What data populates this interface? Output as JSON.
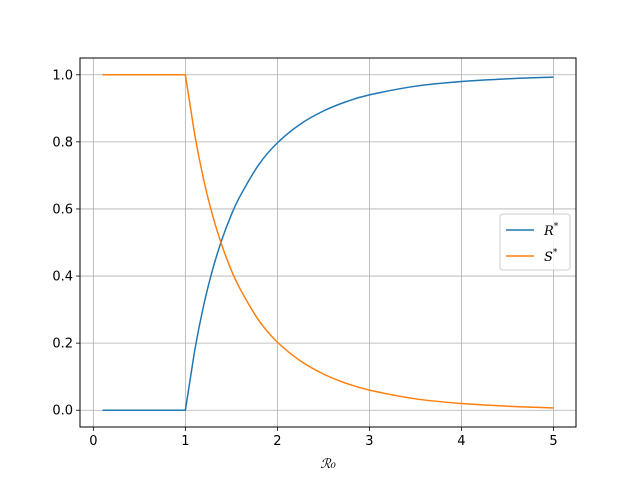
{
  "chart_data": {
    "type": "line",
    "title": "",
    "xlabel": "ℛ₀",
    "ylabel": "",
    "xlim": [
      -0.145,
      5.245
    ],
    "ylim": [
      -0.05,
      1.05
    ],
    "xticks": [
      0,
      1,
      2,
      3,
      4,
      5
    ],
    "xtick_labels": [
      "0",
      "1",
      "2",
      "3",
      "4",
      "5"
    ],
    "yticks": [
      0.0,
      0.2,
      0.4,
      0.6,
      0.8,
      1.0
    ],
    "ytick_labels": [
      "0.0",
      "0.2",
      "0.4",
      "0.6",
      "0.8",
      "1.0"
    ],
    "grid": true,
    "legend_position": "center-right",
    "x": [
      0.1,
      0.5,
      1.0,
      1.1,
      1.2,
      1.3,
      1.4,
      1.5,
      1.6,
      1.8,
      2.0,
      2.25,
      2.5,
      2.75,
      3.0,
      3.5,
      4.0,
      4.5,
      5.0
    ],
    "series": [
      {
        "name": "R*",
        "color": "#1f77b4",
        "values": [
          0.0,
          0.0,
          0.0,
          0.176,
          0.314,
          0.423,
          0.511,
          0.583,
          0.641,
          0.733,
          0.797,
          0.853,
          0.892,
          0.92,
          0.94,
          0.966,
          0.98,
          0.988,
          0.993
        ]
      },
      {
        "name": "S*",
        "color": "#ff7f0e",
        "values": [
          1.0,
          1.0,
          1.0,
          0.824,
          0.686,
          0.577,
          0.489,
          0.417,
          0.359,
          0.267,
          0.203,
          0.147,
          0.108,
          0.08,
          0.06,
          0.034,
          0.02,
          0.012,
          0.007
        ]
      }
    ]
  },
  "legend": {
    "r_label": "R",
    "s_label": "S",
    "superscript": "*"
  }
}
